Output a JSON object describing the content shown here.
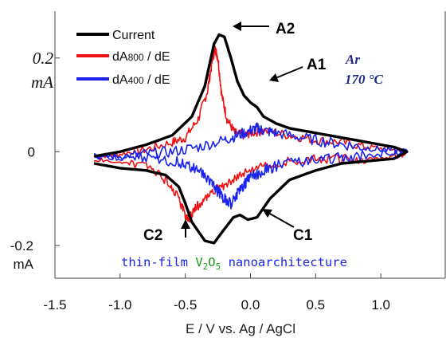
{
  "chart_data": {
    "type": "line",
    "title": "",
    "xlabel": "E / V vs. Ag / AgCl",
    "ylabel": "",
    "xlim": [
      -1.5,
      1.5
    ],
    "ylim": [
      -0.27,
      0.3
    ],
    "x_ticks": [
      "-1.5",
      "-1.0",
      "-0.5",
      "0.0",
      "0.5",
      "1.0"
    ],
    "y_ticks": [
      {
        "value": 0.2,
        "line1": "0.2",
        "line2": "mA"
      },
      {
        "value": 0.0,
        "line1": "0",
        "line2": ""
      },
      {
        "value": -0.2,
        "line1": "-0.2",
        "line2": "mA"
      }
    ],
    "grid": false,
    "legend_position": "top-left",
    "series": [
      {
        "name": "Current",
        "color": "#000000",
        "x": [
          -1.2,
          -1.0,
          -0.8,
          -0.6,
          -0.45,
          -0.35,
          -0.28,
          -0.24,
          -0.2,
          -0.15,
          -0.1,
          -0.05,
          0.0,
          0.05,
          0.1,
          0.2,
          0.3,
          0.5,
          0.7,
          0.9,
          1.1,
          1.2,
          1.1,
          0.9,
          0.7,
          0.5,
          0.3,
          0.15,
          0.05,
          -0.02,
          -0.08,
          -0.13,
          -0.2,
          -0.28,
          -0.35,
          -0.4,
          -0.45,
          -0.5,
          -0.55,
          -0.65,
          -0.8,
          -1.0,
          -1.2
        ],
        "y": [
          -0.01,
          0.0,
          0.015,
          0.035,
          0.075,
          0.14,
          0.23,
          0.25,
          0.245,
          0.2,
          0.15,
          0.12,
          0.105,
          0.095,
          0.075,
          0.06,
          0.05,
          0.04,
          0.03,
          0.02,
          0.01,
          0.0,
          -0.015,
          -0.02,
          -0.025,
          -0.04,
          -0.06,
          -0.1,
          -0.14,
          -0.145,
          -0.135,
          -0.14,
          -0.165,
          -0.195,
          -0.19,
          -0.17,
          -0.15,
          -0.11,
          -0.075,
          -0.05,
          -0.04,
          -0.035,
          -0.025
        ]
      },
      {
        "name": "dA800/dE",
        "color": "#ee1111",
        "x": [
          -1.2,
          -1.0,
          -0.8,
          -0.6,
          -0.5,
          -0.4,
          -0.33,
          -0.29,
          -0.27,
          -0.25,
          -0.22,
          -0.18,
          -0.12,
          -0.05,
          0.0,
          0.1,
          0.3,
          0.5,
          0.7,
          0.9,
          1.1,
          1.2,
          1.1,
          0.9,
          0.7,
          0.5,
          0.3,
          0.1,
          -0.05,
          -0.15,
          -0.25,
          -0.35,
          -0.42,
          -0.47,
          -0.5,
          -0.55,
          -0.65,
          -0.8,
          -1.0,
          -1.2
        ],
        "y": [
          -0.01,
          -0.005,
          0.005,
          0.02,
          0.03,
          0.07,
          0.13,
          0.2,
          0.22,
          0.2,
          0.12,
          0.07,
          0.04,
          0.035,
          0.04,
          0.045,
          0.035,
          0.025,
          0.02,
          0.01,
          0.005,
          -0.005,
          -0.01,
          -0.015,
          -0.015,
          -0.015,
          -0.02,
          -0.03,
          -0.045,
          -0.06,
          -0.08,
          -0.1,
          -0.12,
          -0.14,
          -0.135,
          -0.1,
          -0.06,
          -0.03,
          -0.02,
          -0.015
        ]
      },
      {
        "name": "dA400/dE",
        "color": "#1a22ee",
        "x": [
          -1.2,
          -1.0,
          -0.8,
          -0.6,
          -0.4,
          -0.2,
          -0.1,
          0.0,
          0.05,
          0.1,
          0.2,
          0.4,
          0.6,
          0.8,
          1.0,
          1.2,
          1.0,
          0.8,
          0.6,
          0.4,
          0.2,
          0.1,
          0.0,
          -0.05,
          -0.1,
          -0.15,
          -0.2,
          -0.25,
          -0.3,
          -0.4,
          -0.5,
          -0.6,
          -0.8,
          -1.0,
          -1.2
        ],
        "y": [
          -0.01,
          -0.01,
          -0.005,
          0.0,
          0.01,
          0.025,
          0.035,
          0.045,
          0.05,
          0.045,
          0.04,
          0.03,
          0.02,
          0.012,
          0.005,
          0.0,
          -0.005,
          -0.01,
          -0.015,
          -0.02,
          -0.03,
          -0.04,
          -0.055,
          -0.07,
          -0.09,
          -0.11,
          -0.1,
          -0.085,
          -0.065,
          -0.04,
          -0.025,
          -0.02,
          -0.015,
          -0.012,
          -0.01
        ]
      }
    ],
    "annotations": {
      "A2": "A2",
      "A1": "A1",
      "C2": "C2",
      "C1": "C1",
      "condition_gas": "Ar",
      "condition_temp": "170 °C",
      "material_prefix": "thin-film ",
      "material_v": "V",
      "material_v_sub": "2",
      "material_o": "O",
      "material_o_sub": "5",
      "material_suffix": " nanoarchitecture"
    },
    "legend": {
      "current": "Current",
      "d800_main": "dA",
      "d800_sub": "800",
      "d800_tail": " / dE",
      "d400_main": "dA",
      "d400_sub": "400",
      "d400_tail": " / dE"
    }
  }
}
